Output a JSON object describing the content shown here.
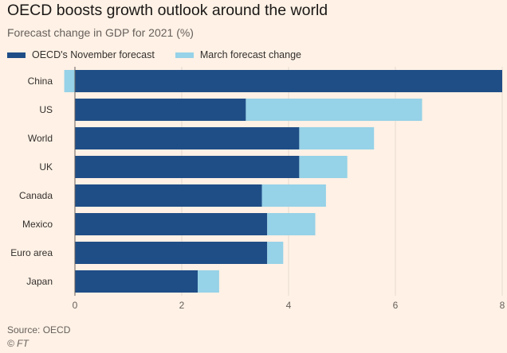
{
  "header": {
    "title": "OECD boosts growth outlook around the world",
    "subtitle": "Forecast change in GDP for 2021 (%)"
  },
  "legend": {
    "items": [
      {
        "label": "OECD's November forecast",
        "color": "#1f4e87"
      },
      {
        "label": "March forecast change",
        "color": "#96d2e8"
      }
    ]
  },
  "footer": {
    "source": "Source: OECD",
    "credit": "© FT"
  },
  "chart_data": {
    "type": "bar",
    "orientation": "horizontal",
    "stacked": true,
    "title": "OECD boosts growth outlook around the world",
    "subtitle": "Forecast change in GDP for 2021 (%)",
    "categories": [
      "China",
      "US",
      "World",
      "UK",
      "Canada",
      "Mexico",
      "Euro area",
      "Japan"
    ],
    "series": [
      {
        "name": "OECD's November forecast",
        "color": "#1f4e87",
        "values": [
          8.0,
          3.2,
          4.2,
          4.2,
          3.5,
          3.6,
          3.6,
          2.3
        ]
      },
      {
        "name": "March forecast change",
        "color": "#96d2e8",
        "values": [
          -0.2,
          3.3,
          1.4,
          0.9,
          1.2,
          0.9,
          0.3,
          0.4
        ]
      }
    ],
    "xlim": [
      0,
      8
    ],
    "xticks": [
      0,
      2,
      4,
      6,
      8
    ],
    "xlabel": "",
    "ylabel": "",
    "grid": true,
    "legend_position": "top-left"
  }
}
